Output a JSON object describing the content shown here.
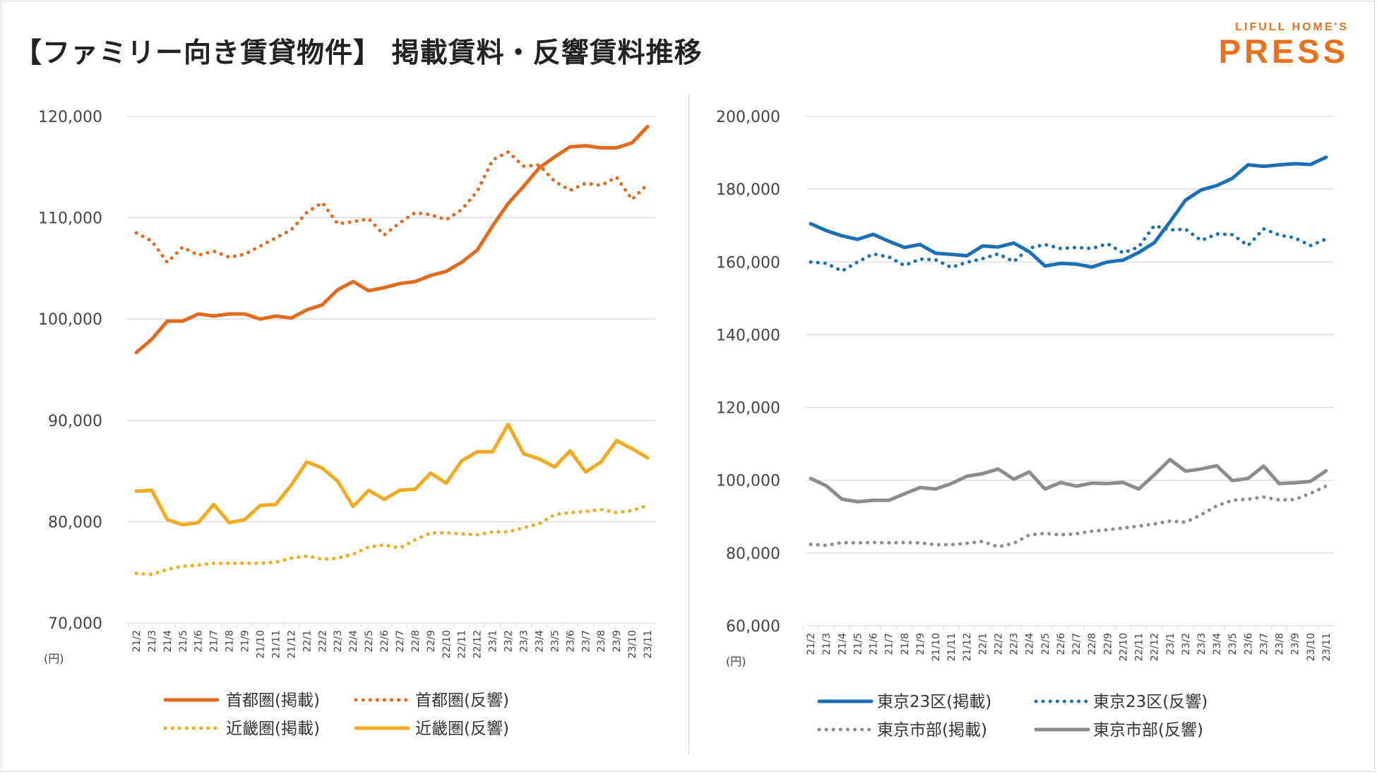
{
  "title": "【ファミリー向き賃貸物件】 掲載賃料・反響賃料推移",
  "logo": {
    "top": "LIFULL HOME'S",
    "main": "PRESS"
  },
  "unit_label": "(円)",
  "colors": {
    "orange": "#E2691D",
    "yellow": "#F2AA1E",
    "blue": "#1B6FB5",
    "gray": "#8C8C8C",
    "grid": "#D9D9D9",
    "text": "#444444"
  },
  "chart_data": [
    {
      "type": "line",
      "categories": [
        "21/2",
        "21/3",
        "21/4",
        "21/5",
        "21/6",
        "21/7",
        "21/8",
        "21/9",
        "21/10",
        "21/11",
        "21/12",
        "22/1",
        "22/2",
        "22/3",
        "22/4",
        "22/5",
        "22/6",
        "22/7",
        "22/8",
        "22/9",
        "22/10",
        "22/11",
        "22/12",
        "23/1",
        "23/2",
        "23/3",
        "23/4",
        "23/5",
        "23/6",
        "23/7",
        "23/8",
        "23/9",
        "23/10",
        "23/11"
      ],
      "ylim": [
        70000,
        120000
      ],
      "yticks": [
        70000,
        80000,
        90000,
        100000,
        110000,
        120000
      ],
      "ytick_labels": [
        "70,000",
        "80,000",
        "90,000",
        "100,000",
        "110,000",
        "120,000"
      ],
      "legend_position": "bottom",
      "series": [
        {
          "name": "首都圏(掲載)",
          "color": "orange",
          "style": "solid",
          "values": [
            96700,
            98000,
            99800,
            99800,
            100500,
            100300,
            100500,
            100500,
            100000,
            100300,
            100100,
            100900,
            101400,
            102900,
            103700,
            102800,
            103100,
            103500,
            103700,
            104300,
            104700,
            105600,
            106800,
            109200,
            111400,
            113100,
            114900,
            116000,
            117000,
            117100,
            116900,
            116900,
            117400,
            119000
          ]
        },
        {
          "name": "首都圏(反響)",
          "color": "orange",
          "style": "dotted",
          "values": [
            108500,
            107700,
            105600,
            107100,
            106300,
            106700,
            106100,
            106400,
            107200,
            108000,
            108800,
            110500,
            111500,
            109400,
            109600,
            109900,
            108300,
            109500,
            110500,
            110300,
            109800,
            110800,
            112600,
            115700,
            116500,
            115100,
            115200,
            113600,
            112700,
            113400,
            113200,
            114000,
            111800,
            113300
          ]
        },
        {
          "name": "近畿圏(掲載)",
          "color": "yellow",
          "style": "dotted",
          "values": [
            74900,
            74800,
            75300,
            75600,
            75700,
            75900,
            75900,
            75900,
            75900,
            76000,
            76400,
            76600,
            76300,
            76400,
            76800,
            77500,
            77700,
            77400,
            78200,
            78900,
            78900,
            78800,
            78700,
            79000,
            79000,
            79400,
            79800,
            80700,
            80900,
            81000,
            81200,
            80900,
            81100,
            81600
          ]
        },
        {
          "name": "近畿圏(反響)",
          "color": "yellow",
          "style": "solid",
          "values": [
            83000,
            83100,
            80200,
            79700,
            79900,
            81700,
            79900,
            80200,
            81600,
            81700,
            83600,
            85900,
            85300,
            84000,
            81500,
            83100,
            82200,
            83100,
            83200,
            84800,
            83800,
            86000,
            86900,
            86900,
            89600,
            86700,
            86200,
            85400,
            87000,
            84900,
            85900,
            88000,
            87200,
            86300
          ]
        }
      ],
      "legend": [
        {
          "label": "首都圏(掲載)",
          "color": "orange",
          "style": "solid"
        },
        {
          "label": "首都圏(反響)",
          "color": "orange",
          "style": "dotted"
        },
        {
          "label": "近畿圏(掲載)",
          "color": "yellow",
          "style": "dotted"
        },
        {
          "label": "近畿圏(反響)",
          "color": "yellow",
          "style": "solid"
        }
      ]
    },
    {
      "type": "line",
      "categories": [
        "21/2",
        "21/3",
        "21/4",
        "21/5",
        "21/6",
        "21/7",
        "21/8",
        "21/9",
        "21/10",
        "21/11",
        "21/12",
        "22/1",
        "22/2",
        "22/3",
        "22/4",
        "22/5",
        "22/6",
        "22/7",
        "22/8",
        "22/9",
        "22/10",
        "22/11",
        "22/12",
        "23/1",
        "23/2",
        "23/3",
        "23/4",
        "23/5",
        "23/6",
        "23/7",
        "23/8",
        "23/9",
        "23/10",
        "23/11"
      ],
      "ylim": [
        60000,
        200000
      ],
      "yticks": [
        60000,
        80000,
        100000,
        120000,
        140000,
        160000,
        180000,
        200000
      ],
      "ytick_labels": [
        "60,000",
        "80,000",
        "100,000",
        "120,000",
        "140,000",
        "160,000",
        "180,000",
        "200,000"
      ],
      "legend_position": "bottom",
      "series": [
        {
          "name": "東京23区(掲載)",
          "color": "blue",
          "style": "solid",
          "values": [
            170500,
            168600,
            167200,
            166200,
            167600,
            165700,
            164000,
            164800,
            162400,
            162100,
            161700,
            164400,
            164100,
            165200,
            162800,
            158900,
            159600,
            159400,
            158600,
            160000,
            160500,
            162600,
            165300,
            171000,
            177000,
            179800,
            181000,
            183000,
            186700,
            186300,
            186700,
            187000,
            186800,
            188800
          ]
        },
        {
          "name": "東京23区(反響)",
          "color": "blue",
          "style": "dotted",
          "values": [
            160000,
            159600,
            157500,
            160000,
            162200,
            161400,
            159000,
            160800,
            160600,
            158500,
            159900,
            160900,
            162200,
            160100,
            163800,
            164800,
            163700,
            164000,
            163700,
            165000,
            162500,
            164100,
            170000,
            168800,
            169000,
            165900,
            167700,
            167500,
            164500,
            169100,
            167400,
            166600,
            164500,
            166300
          ]
        },
        {
          "name": "東京市部(掲載)",
          "color": "gray",
          "style": "dotted",
          "values": [
            82400,
            82100,
            82900,
            82800,
            82900,
            82800,
            82900,
            82800,
            82300,
            82300,
            82700,
            83200,
            81700,
            82700,
            85000,
            85400,
            85000,
            85300,
            86000,
            86400,
            86900,
            87400,
            88000,
            88800,
            88500,
            90500,
            93000,
            94500,
            94800,
            95400,
            94600,
            94700,
            96400,
            98400
          ]
        },
        {
          "name": "東京市部(反響)",
          "color": "gray",
          "style": "solid",
          "values": [
            100500,
            98500,
            94800,
            94100,
            94500,
            94500,
            96300,
            98000,
            97600,
            99100,
            101100,
            101800,
            103100,
            100300,
            102300,
            97600,
            99400,
            98400,
            99200,
            99100,
            99400,
            97600,
            101500,
            105700,
            102500,
            103100,
            104000,
            99900,
            100500,
            103900,
            99100,
            99300,
            99700,
            102600
          ]
        }
      ],
      "legend": [
        {
          "label": "東京23区(掲載)",
          "color": "blue",
          "style": "solid"
        },
        {
          "label": "東京23区(反響)",
          "color": "blue",
          "style": "dotted"
        },
        {
          "label": "東京市部(掲載)",
          "color": "gray",
          "style": "dotted"
        },
        {
          "label": "東京市部(反響)",
          "color": "gray",
          "style": "solid"
        }
      ]
    }
  ]
}
